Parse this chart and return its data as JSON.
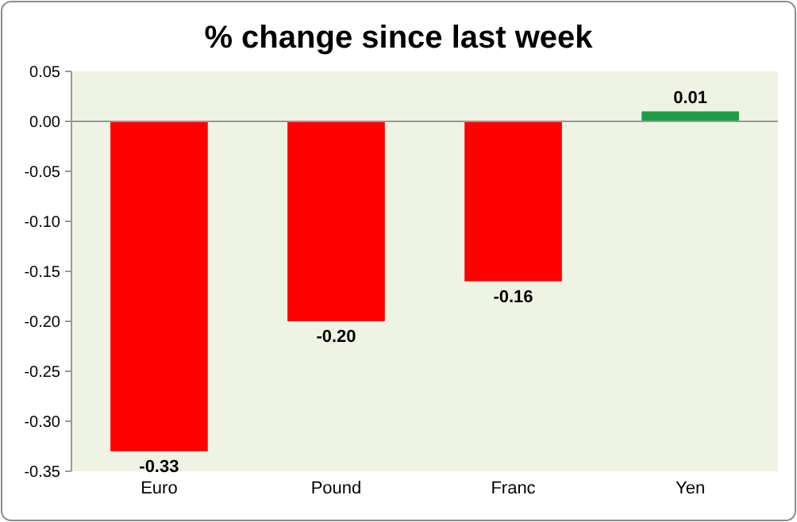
{
  "chart_data": {
    "type": "bar",
    "title": "% change since last week",
    "categories": [
      "Euro",
      "Pound",
      "Franc",
      "Yen"
    ],
    "values": [
      -0.33,
      -0.2,
      -0.16,
      0.01
    ],
    "colors": [
      "#ff0000",
      "#ff0000",
      "#ff0000",
      "#1e9e48"
    ],
    "value_labels": [
      "-0.33",
      "-0.20",
      "-0.16",
      "0.01"
    ],
    "ylim": [
      -0.35,
      0.05
    ],
    "yticks": [
      {
        "value": 0.05,
        "label": "0.05"
      },
      {
        "value": 0,
        "label": "0.00"
      },
      {
        "value": -0.05,
        "label": "-0.05"
      },
      {
        "value": -0.1,
        "label": "-0.10"
      },
      {
        "value": -0.15,
        "label": "-0.15"
      },
      {
        "value": -0.2,
        "label": "-0.20"
      },
      {
        "value": -0.25,
        "label": "-0.25"
      },
      {
        "value": -0.3,
        "label": "-0.30"
      },
      {
        "value": -0.35,
        "label": "-0.35"
      }
    ],
    "tick_labels": true
  }
}
